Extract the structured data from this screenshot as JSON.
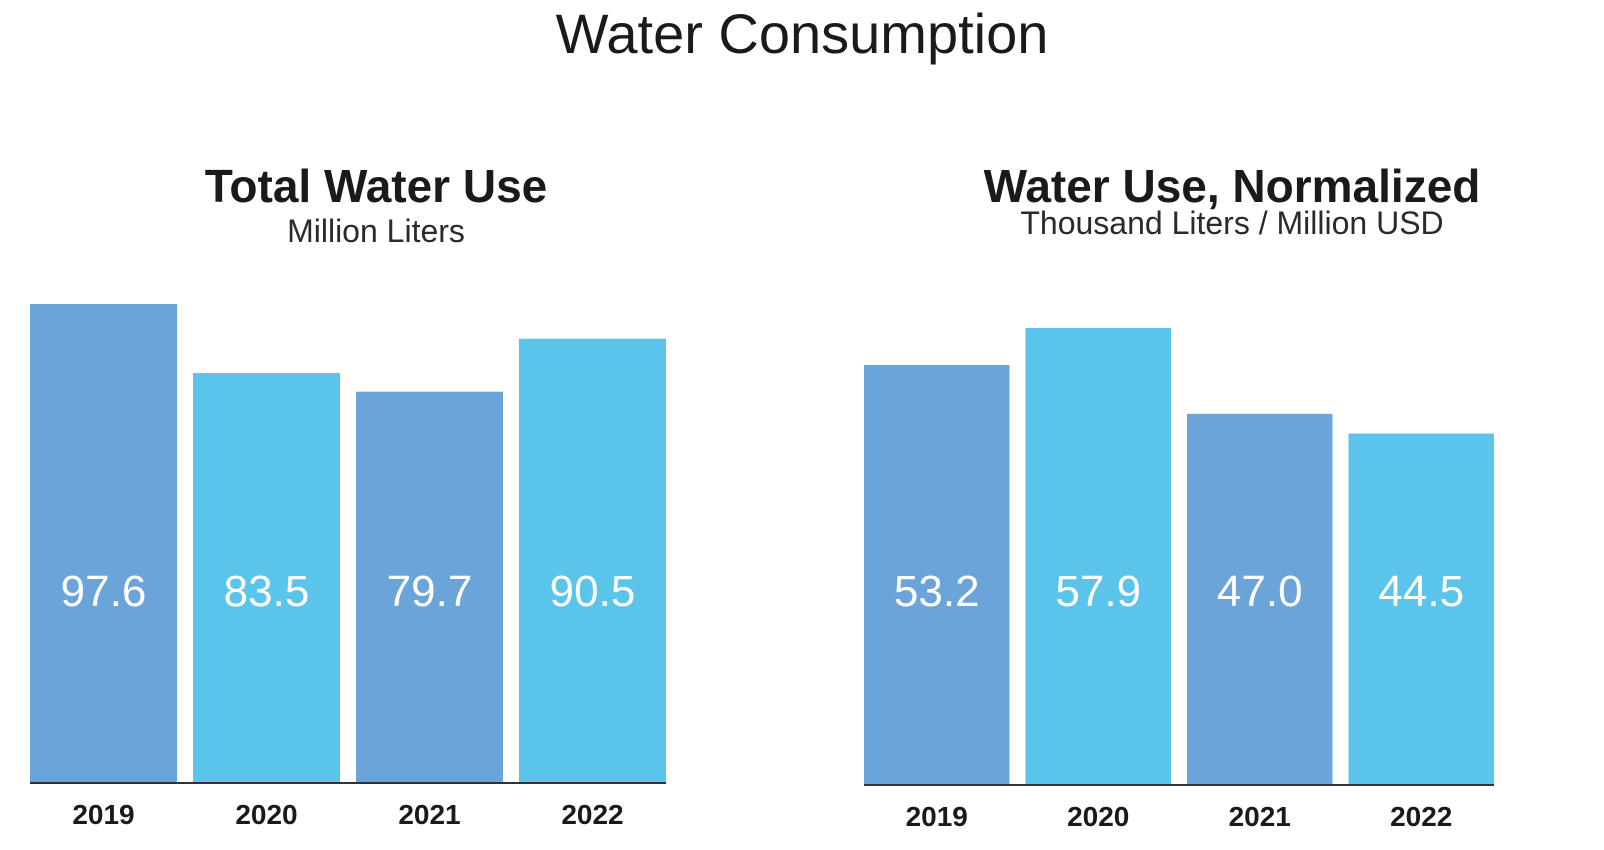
{
  "title": "Water Consumption",
  "colors": {
    "bar_dark": "#6BA4D8",
    "bar_light": "#5AC4EB",
    "axis": "#333333",
    "label": "#ffffff"
  },
  "chart_data": [
    {
      "type": "bar",
      "title": "Total Water Use",
      "subtitle": "Million Liters",
      "categories": [
        "2019",
        "2020",
        "2021",
        "2022"
      ],
      "values": [
        97.6,
        83.5,
        79.7,
        90.5
      ],
      "value_labels": [
        "97.6",
        "83.5",
        "79.7",
        "90.5"
      ],
      "ylim": [
        0,
        97.6
      ],
      "grid": false
    },
    {
      "type": "bar",
      "title": "Water Use, Normalized",
      "subtitle": "Thousand Liters / Million USD",
      "categories": [
        "2019",
        "2020",
        "2021",
        "2022"
      ],
      "values": [
        53.2,
        57.9,
        47.0,
        44.5
      ],
      "value_labels": [
        "53.2",
        "57.9",
        "47.0",
        "44.5"
      ],
      "ylim": [
        0,
        57.9
      ],
      "grid": false
    }
  ]
}
